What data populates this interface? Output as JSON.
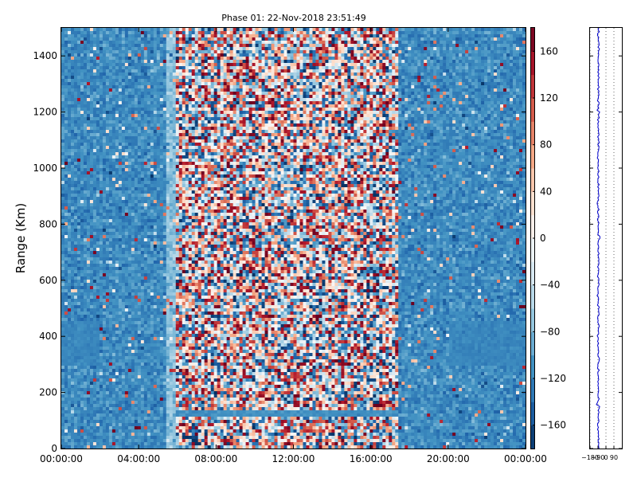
{
  "chart_data": [
    {
      "type": "heatmap",
      "title": "Phase 01: 22-Nov-2018 23:51:49",
      "xlabel": "",
      "ylabel": "Range (Km)",
      "x_tick_labels": [
        "00:00:00",
        "04:00:00",
        "08:00:00",
        "12:00:00",
        "16:00:00",
        "20:00:00",
        "00:00:00"
      ],
      "x_tick_hours": [
        0,
        4,
        8,
        12,
        16,
        20,
        24
      ],
      "xlim_hours": [
        0,
        24
      ],
      "y_ticks": [
        0,
        200,
        400,
        600,
        800,
        1000,
        1200,
        1400
      ],
      "ylim": [
        0,
        1500
      ],
      "colorbar": {
        "colormap": "RdBu_r",
        "range": [
          -180,
          180
        ],
        "ticks": [
          160,
          120,
          80,
          40,
          0,
          -40,
          -80,
          -120,
          -160
        ],
        "tick_labels": [
          "160",
          "120",
          "80",
          "40",
          "0",
          "−40",
          "−80",
          "−120",
          "−160"
        ]
      },
      "features": [
        {
          "description": "noise-dominated random phase region",
          "x_range_hours": [
            6,
            17.5
          ],
          "y_range": [
            0,
            1500
          ]
        },
        {
          "description": "coherent echo band",
          "x_range_hours": [
            6,
            17.5
          ],
          "y_range": [
            110,
            140
          ]
        },
        {
          "description": "coherent echo region",
          "x_range_hours": [
            0,
            2
          ],
          "y_range": [
            300,
            450
          ]
        },
        {
          "description": "coherent echo region",
          "x_range_hours": [
            20,
            24
          ],
          "y_range": [
            300,
            450
          ]
        }
      ],
      "colors": {
        "dominant": "#3c7fb8",
        "positive": "#b2182b",
        "negative": "#2166ac"
      }
    },
    {
      "type": "line",
      "title": "",
      "x_tick_labels": [
        "−180",
        "−90",
        "0",
        "90"
      ],
      "x_ticks": [
        -180,
        -90,
        0,
        90
      ],
      "xlim": [
        -180,
        180
      ],
      "ylim": [
        0,
        1500
      ],
      "grid": "vertical dotted",
      "series_color": "#0000cc",
      "profile_mean": -85,
      "profile_spread": 10
    }
  ]
}
